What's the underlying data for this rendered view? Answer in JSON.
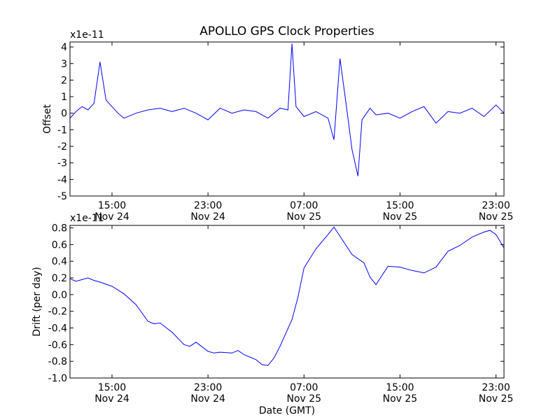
{
  "title": "APOLLO GPS Clock Properties",
  "chart_data": [
    {
      "type": "line",
      "ylabel": "Offset",
      "multiplier": "x1e-11",
      "ylim": [
        -5,
        4.3
      ],
      "yticks": [
        -5,
        -4,
        -3,
        -2,
        -1,
        0,
        1,
        2,
        3,
        4
      ],
      "xlim": [
        "2011-11-24T11:30",
        "2011-11-25T23:40"
      ],
      "xticks": [
        {
          "time": "2011-11-24T15:00",
          "label1": "15:00",
          "label2": "Nov 24"
        },
        {
          "time": "2011-11-24T23:00",
          "label1": "23:00",
          "label2": "Nov 24"
        },
        {
          "time": "2011-11-25T07:00",
          "label1": "07:00",
          "label2": "Nov 25"
        },
        {
          "time": "2011-11-25T15:00",
          "label1": "15:00",
          "label2": "Nov 25"
        },
        {
          "time": "2011-11-25T23:00",
          "label1": "23:00",
          "label2": "Nov 25"
        }
      ],
      "color": "#0000ff",
      "series": [
        {
          "x": [
            "2011-11-24T11:30",
            "2011-11-24T12:00",
            "2011-11-24T12:30",
            "2011-11-24T13:00",
            "2011-11-24T13:30",
            "2011-11-24T14:00",
            "2011-11-24T14:30",
            "2011-11-24T15:00",
            "2011-11-24T15:30",
            "2011-11-24T16:00",
            "2011-11-24T17:00",
            "2011-11-24T18:00",
            "2011-11-24T19:00",
            "2011-11-24T20:00",
            "2011-11-24T21:00",
            "2011-11-24T22:00",
            "2011-11-24T23:00",
            "2011-11-25T00:00",
            "2011-11-25T01:00",
            "2011-11-25T02:00",
            "2011-11-25T03:00",
            "2011-11-25T04:00",
            "2011-11-25T05:00",
            "2011-11-25T05:40",
            "2011-11-25T06:00",
            "2011-11-25T06:20",
            "2011-11-25T07:00",
            "2011-11-25T08:00",
            "2011-11-25T09:00",
            "2011-11-25T09:30",
            "2011-11-25T10:00",
            "2011-11-25T10:30",
            "2011-11-25T11:00",
            "2011-11-25T11:30",
            "2011-11-25T11:50",
            "2011-11-25T12:30",
            "2011-11-25T13:00",
            "2011-11-25T14:00",
            "2011-11-25T15:00",
            "2011-11-25T16:00",
            "2011-11-25T17:00",
            "2011-11-25T18:00",
            "2011-11-25T19:00",
            "2011-11-25T20:00",
            "2011-11-25T21:00",
            "2011-11-25T22:00",
            "2011-11-25T23:00",
            "2011-11-25T23:40"
          ],
          "y": [
            -0.3,
            0.1,
            0.4,
            0.2,
            0.6,
            3.1,
            0.8,
            0.4,
            0.0,
            -0.3,
            0.0,
            0.2,
            0.3,
            0.1,
            0.3,
            0.0,
            -0.4,
            0.3,
            0.0,
            0.2,
            0.1,
            -0.3,
            0.3,
            0.2,
            4.2,
            0.4,
            -0.2,
            0.1,
            -0.3,
            -1.6,
            3.3,
            0.6,
            -2.2,
            -3.8,
            -0.4,
            0.3,
            -0.1,
            0.0,
            -0.3,
            0.1,
            0.4,
            -0.6,
            0.1,
            0.0,
            0.3,
            -0.2,
            0.5,
            0.0
          ]
        }
      ]
    },
    {
      "type": "line",
      "ylabel": "Drift (per day)",
      "xlabel": "Date (GMT)",
      "multiplier": "x1e-11",
      "ylim": [
        -1.0,
        0.83
      ],
      "yticks": [
        -1.0,
        -0.8,
        -0.6,
        -0.4,
        -0.2,
        0.0,
        0.2,
        0.4,
        0.6,
        0.8
      ],
      "ytick_labels": [
        "-1.0",
        "-0.8",
        "-0.6",
        "-0.4",
        "-0.2",
        "0.0",
        "0.2",
        "0.4",
        "0.6",
        "0.8"
      ],
      "xlim": [
        "2011-11-24T11:30",
        "2011-11-25T23:40"
      ],
      "xticks": [
        {
          "time": "2011-11-24T15:00",
          "label1": "15:00",
          "label2": "Nov 24"
        },
        {
          "time": "2011-11-24T23:00",
          "label1": "23:00",
          "label2": "Nov 24"
        },
        {
          "time": "2011-11-25T07:00",
          "label1": "07:00",
          "label2": "Nov 25"
        },
        {
          "time": "2011-11-25T15:00",
          "label1": "15:00",
          "label2": "Nov 25"
        },
        {
          "time": "2011-11-25T23:00",
          "label1": "23:00",
          "label2": "Nov 25"
        }
      ],
      "color": "#0000ff",
      "series": [
        {
          "x": [
            "2011-11-24T11:30",
            "2011-11-24T12:00",
            "2011-11-24T12:30",
            "2011-11-24T13:00",
            "2011-11-24T13:30",
            "2011-11-24T14:00",
            "2011-11-24T15:00",
            "2011-11-24T16:00",
            "2011-11-24T17:00",
            "2011-11-24T18:00",
            "2011-11-24T18:30",
            "2011-11-24T19:00",
            "2011-11-24T20:00",
            "2011-11-24T21:00",
            "2011-11-24T21:30",
            "2011-11-24T22:00",
            "2011-11-24T23:00",
            "2011-11-24T23:30",
            "2011-11-25T00:00",
            "2011-11-25T01:00",
            "2011-11-25T01:30",
            "2011-11-25T02:00",
            "2011-11-25T03:00",
            "2011-11-25T03:30",
            "2011-11-25T04:00",
            "2011-11-25T04:30",
            "2011-11-25T05:00",
            "2011-11-25T06:00",
            "2011-11-25T06:30",
            "2011-11-25T07:00",
            "2011-11-25T08:00",
            "2011-11-25T09:00",
            "2011-11-25T09:30",
            "2011-11-25T10:00",
            "2011-11-25T11:00",
            "2011-11-25T12:00",
            "2011-11-25T12:30",
            "2011-11-25T13:00",
            "2011-11-25T14:00",
            "2011-11-25T15:00",
            "2011-11-25T16:00",
            "2011-11-25T17:00",
            "2011-11-25T18:00",
            "2011-11-25T19:00",
            "2011-11-25T20:00",
            "2011-11-25T21:00",
            "2011-11-25T22:00",
            "2011-11-25T22:30",
            "2011-11-25T23:00",
            "2011-11-25T23:40"
          ],
          "y": [
            0.19,
            0.16,
            0.18,
            0.2,
            0.17,
            0.15,
            0.1,
            0.01,
            -0.12,
            -0.32,
            -0.35,
            -0.34,
            -0.45,
            -0.6,
            -0.62,
            -0.57,
            -0.68,
            -0.7,
            -0.69,
            -0.7,
            -0.67,
            -0.72,
            -0.78,
            -0.84,
            -0.85,
            -0.76,
            -0.62,
            -0.3,
            -0.03,
            0.32,
            0.55,
            0.72,
            0.81,
            0.7,
            0.48,
            0.38,
            0.21,
            0.12,
            0.34,
            0.33,
            0.29,
            0.26,
            0.33,
            0.52,
            0.59,
            0.69,
            0.75,
            0.77,
            0.72,
            0.56
          ]
        }
      ]
    }
  ]
}
